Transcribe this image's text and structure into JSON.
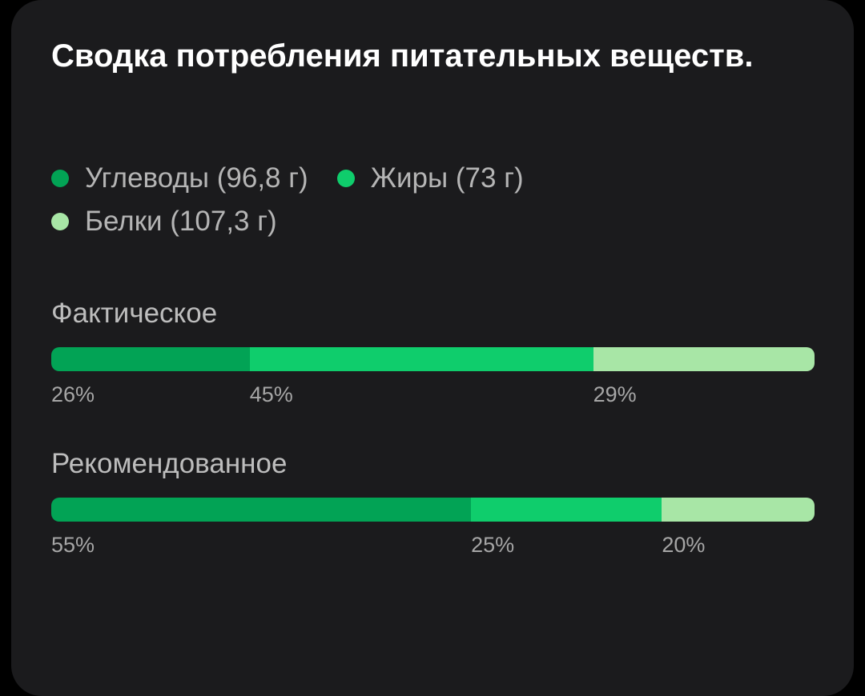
{
  "title": "Сводка потребления питательных веществ.",
  "legend": [
    {
      "label": "Углеводы (96,8 г)",
      "color": "#02a355"
    },
    {
      "label": "Жиры (73 г)",
      "color": "#0fcd6c"
    },
    {
      "label": "Белки (107,3 г)",
      "color": "#a8e6a6"
    }
  ],
  "actual": {
    "label": "Фактическое",
    "segments": [
      {
        "value": 26,
        "text": "26%",
        "color": "#02a355"
      },
      {
        "value": 45,
        "text": "45%",
        "color": "#0fcd6c"
      },
      {
        "value": 29,
        "text": "29%",
        "color": "#a8e6a6"
      }
    ]
  },
  "recommended": {
    "label": "Рекомендованное",
    "segments": [
      {
        "value": 55,
        "text": "55%",
        "color": "#02a355"
      },
      {
        "value": 25,
        "text": "25%",
        "color": "#0fcd6c"
      },
      {
        "value": 20,
        "text": "20%",
        "color": "#a8e6a6"
      }
    ]
  }
}
